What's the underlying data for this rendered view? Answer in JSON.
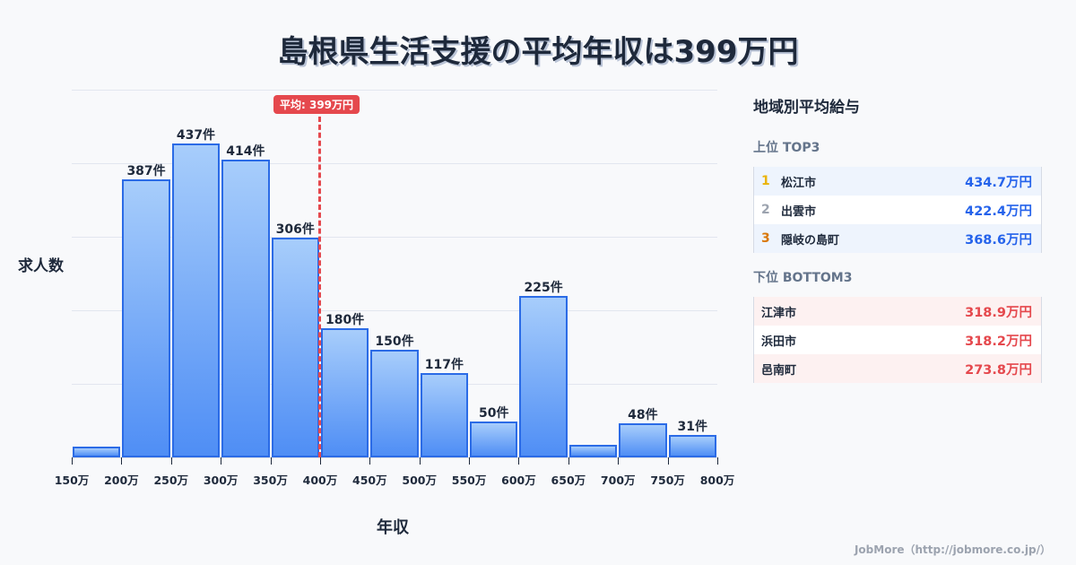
{
  "title": "島根県生活支援の平均年収は399万円",
  "chart": {
    "ylabel": "求人数",
    "xlabel": "年収",
    "average_badge": "平均: 399万円",
    "ticks": [
      "150万",
      "200万",
      "250万",
      "300万",
      "350万",
      "400万",
      "450万",
      "500万",
      "550万",
      "600万",
      "650万",
      "700万",
      "750万",
      "800万"
    ],
    "bar_labels": [
      "",
      "387件",
      "437件",
      "414件",
      "306件",
      "180件",
      "150件",
      "117件",
      "50件",
      "225件",
      "",
      "48件",
      "31件"
    ]
  },
  "chart_data": {
    "type": "bar",
    "title": "島根県生活支援の平均年収は399万円",
    "xlabel": "年収",
    "ylabel": "求人数",
    "categories": [
      "150-200万",
      "200-250万",
      "250-300万",
      "300-350万",
      "350-400万",
      "400-450万",
      "450-500万",
      "500-550万",
      "550-600万",
      "600-650万",
      "650-700万",
      "700-750万",
      "750-800万"
    ],
    "values": [
      15,
      387,
      437,
      414,
      306,
      180,
      150,
      117,
      50,
      225,
      17,
      48,
      31
    ],
    "value_labels": [
      "",
      "387件",
      "437件",
      "414件",
      "306件",
      "180件",
      "150件",
      "117件",
      "50件",
      "225件",
      "",
      "48件",
      "31件"
    ],
    "x_tick_labels": [
      "150万",
      "200万",
      "250万",
      "300万",
      "350万",
      "400万",
      "450万",
      "500万",
      "550万",
      "600万",
      "650万",
      "700万",
      "750万",
      "800万"
    ],
    "ylim": [
      0,
      512
    ],
    "grid": true,
    "annotations": [
      {
        "type": "vline",
        "x": 399,
        "label": "平均: 399万円",
        "color": "#e5484d"
      }
    ],
    "bar_color": "#4f8ef5",
    "bar_edge_color": "#2b6be6"
  },
  "panel": {
    "title": "地域別平均給与",
    "top_title": "上位 TOP3",
    "top": [
      {
        "rank": "1",
        "name": "松江市",
        "value": "434.7万円",
        "rank_color": "#eab308"
      },
      {
        "rank": "2",
        "name": "出雲市",
        "value": "422.4万円",
        "rank_color": "#9ca3af"
      },
      {
        "rank": "3",
        "name": "隠岐の島町",
        "value": "368.6万円",
        "rank_color": "#d97706"
      }
    ],
    "bottom_title": "下位 BOTTOM3",
    "bottom": [
      {
        "name": "江津市",
        "value": "318.9万円"
      },
      {
        "name": "浜田市",
        "value": "318.2万円"
      },
      {
        "name": "邑南町",
        "value": "273.8万円"
      }
    ]
  },
  "footer": "JobMore（http://jobmore.co.jp/）"
}
